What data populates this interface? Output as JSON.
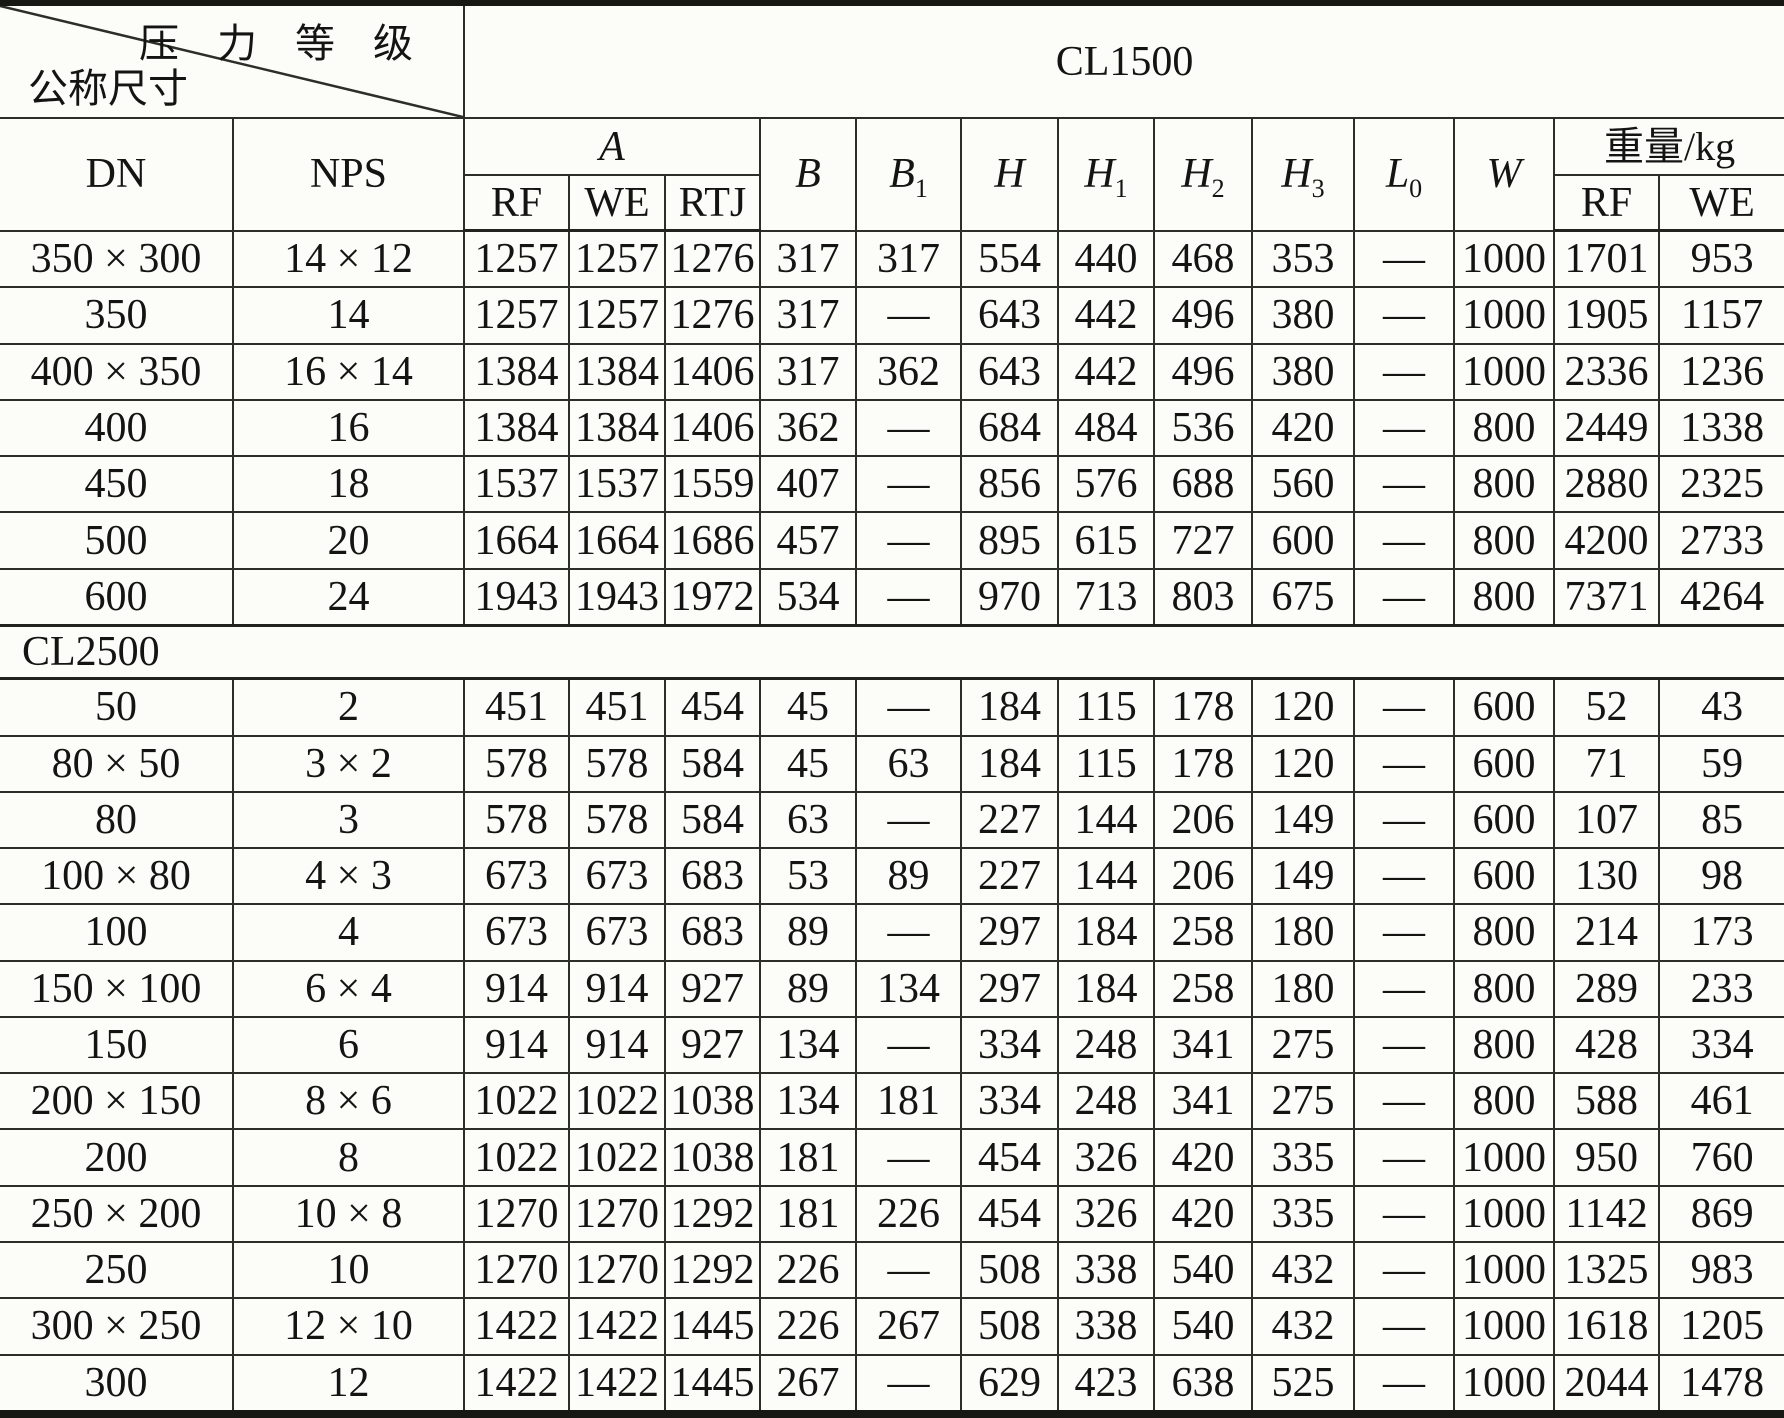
{
  "table": {
    "diagonal_top": "压 力 等 级",
    "diagonal_bottom": "公称尺寸",
    "pressure_class_1": "CL1500",
    "pressure_class_2": "CL2500",
    "col_dn": "DN",
    "col_nps": "NPS",
    "col_a": "A",
    "col_rf": "RF",
    "col_we": "WE",
    "col_rtj": "RTJ",
    "col_b": "B",
    "col_b1_base": "B",
    "col_b1_sub": "1",
    "col_h": "H",
    "col_h1_base": "H",
    "col_h1_sub": "1",
    "col_h2_base": "H",
    "col_h2_sub": "2",
    "col_h3_base": "H",
    "col_h3_sub": "3",
    "col_l0_base": "L",
    "col_l0_sub": "0",
    "col_w": "W",
    "col_weight": "重量/kg",
    "weight_rf": "RF",
    "weight_we": "WE"
  },
  "cl1500_rows": [
    [
      "350 × 300",
      "14 × 12",
      "1257",
      "1257",
      "1276",
      "317",
      "317",
      "554",
      "440",
      "468",
      "353",
      "—",
      "1000",
      "1701",
      "953"
    ],
    [
      "350",
      "14",
      "1257",
      "1257",
      "1276",
      "317",
      "—",
      "643",
      "442",
      "496",
      "380",
      "—",
      "1000",
      "1905",
      "1157"
    ],
    [
      "400 × 350",
      "16 × 14",
      "1384",
      "1384",
      "1406",
      "317",
      "362",
      "643",
      "442",
      "496",
      "380",
      "—",
      "1000",
      "2336",
      "1236"
    ],
    [
      "400",
      "16",
      "1384",
      "1384",
      "1406",
      "362",
      "—",
      "684",
      "484",
      "536",
      "420",
      "—",
      "800",
      "2449",
      "1338"
    ],
    [
      "450",
      "18",
      "1537",
      "1537",
      "1559",
      "407",
      "—",
      "856",
      "576",
      "688",
      "560",
      "—",
      "800",
      "2880",
      "2325"
    ],
    [
      "500",
      "20",
      "1664",
      "1664",
      "1686",
      "457",
      "—",
      "895",
      "615",
      "727",
      "600",
      "—",
      "800",
      "4200",
      "2733"
    ],
    [
      "600",
      "24",
      "1943",
      "1943",
      "1972",
      "534",
      "—",
      "970",
      "713",
      "803",
      "675",
      "—",
      "800",
      "7371",
      "4264"
    ]
  ],
  "cl2500_rows": [
    [
      "50",
      "2",
      "451",
      "451",
      "454",
      "45",
      "—",
      "184",
      "115",
      "178",
      "120",
      "—",
      "600",
      "52",
      "43"
    ],
    [
      "80 × 50",
      "3 × 2",
      "578",
      "578",
      "584",
      "45",
      "63",
      "184",
      "115",
      "178",
      "120",
      "—",
      "600",
      "71",
      "59"
    ],
    [
      "80",
      "3",
      "578",
      "578",
      "584",
      "63",
      "—",
      "227",
      "144",
      "206",
      "149",
      "—",
      "600",
      "107",
      "85"
    ],
    [
      "100 × 80",
      "4 × 3",
      "673",
      "673",
      "683",
      "53",
      "89",
      "227",
      "144",
      "206",
      "149",
      "—",
      "600",
      "130",
      "98"
    ],
    [
      "100",
      "4",
      "673",
      "673",
      "683",
      "89",
      "—",
      "297",
      "184",
      "258",
      "180",
      "—",
      "800",
      "214",
      "173"
    ],
    [
      "150 × 100",
      "6 × 4",
      "914",
      "914",
      "927",
      "89",
      "134",
      "297",
      "184",
      "258",
      "180",
      "—",
      "800",
      "289",
      "233"
    ],
    [
      "150",
      "6",
      "914",
      "914",
      "927",
      "134",
      "—",
      "334",
      "248",
      "341",
      "275",
      "—",
      "800",
      "428",
      "334"
    ],
    [
      "200 × 150",
      "8 × 6",
      "1022",
      "1022",
      "1038",
      "134",
      "181",
      "334",
      "248",
      "341",
      "275",
      "—",
      "800",
      "588",
      "461"
    ],
    [
      "200",
      "8",
      "1022",
      "1022",
      "1038",
      "181",
      "—",
      "454",
      "326",
      "420",
      "335",
      "—",
      "1000",
      "950",
      "760"
    ],
    [
      "250 × 200",
      "10 × 8",
      "1270",
      "1270",
      "1292",
      "181",
      "226",
      "454",
      "326",
      "420",
      "335",
      "—",
      "1000",
      "1142",
      "869"
    ],
    [
      "250",
      "10",
      "1270",
      "1270",
      "1292",
      "226",
      "—",
      "508",
      "338",
      "540",
      "432",
      "—",
      "1000",
      "1325",
      "983"
    ],
    [
      "300 × 250",
      "12 × 10",
      "1422",
      "1422",
      "1445",
      "226",
      "267",
      "508",
      "338",
      "540",
      "432",
      "—",
      "1000",
      "1618",
      "1205"
    ],
    [
      "300",
      "12",
      "1422",
      "1422",
      "1445",
      "267",
      "—",
      "629",
      "423",
      "638",
      "525",
      "—",
      "1000",
      "2044",
      "1478"
    ]
  ]
}
